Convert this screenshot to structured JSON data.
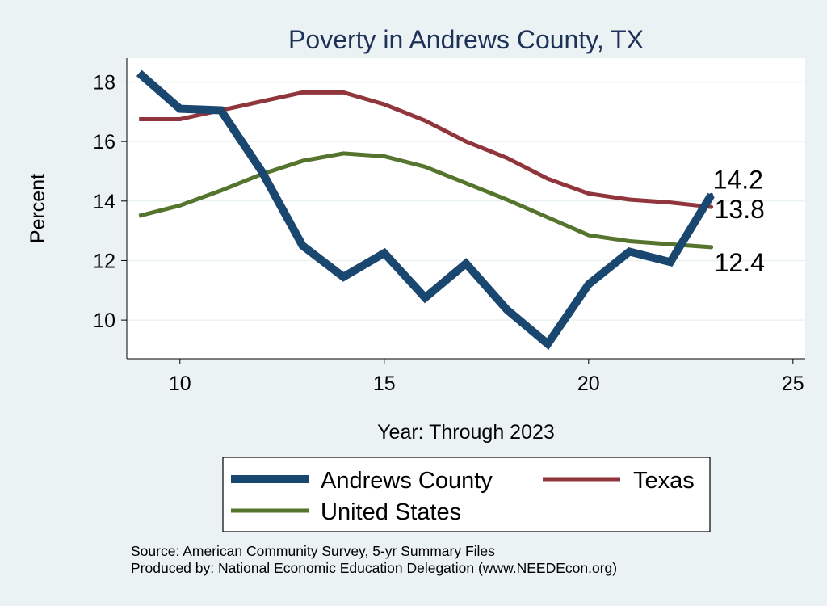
{
  "chart_data": {
    "type": "line",
    "title": "Poverty in Andrews County, TX",
    "xlabel": "Year: Through 2023",
    "ylabel": "Percent",
    "xlim": [
      8.7,
      25.3
    ],
    "ylim": [
      8.7,
      18.8
    ],
    "xticks": [
      10,
      15,
      20,
      25
    ],
    "yticks": [
      10,
      12,
      14,
      16,
      18
    ],
    "grid": true,
    "legend_position": "bottom",
    "x": [
      9,
      10,
      11,
      12,
      13,
      14,
      15,
      16,
      17,
      18,
      19,
      20,
      21,
      22,
      23
    ],
    "series": [
      {
        "name": "Andrews County",
        "color": "#1a476f",
        "values": [
          18.3,
          17.1,
          17.05,
          15.0,
          12.5,
          11.45,
          12.25,
          10.75,
          11.9,
          10.35,
          9.2,
          11.2,
          12.3,
          11.95,
          14.2
        ],
        "end_label": "14.2"
      },
      {
        "name": "Texas",
        "color": "#90353b",
        "values": [
          16.75,
          16.75,
          17.05,
          17.35,
          17.65,
          17.65,
          17.25,
          16.7,
          16.0,
          15.45,
          14.75,
          14.25,
          14.05,
          13.95,
          13.8
        ],
        "end_label": "13.8"
      },
      {
        "name": "United States",
        "color": "#55752f",
        "values": [
          13.5,
          13.85,
          14.35,
          14.9,
          15.35,
          15.6,
          15.5,
          15.15,
          14.6,
          14.05,
          13.45,
          12.85,
          12.65,
          12.55,
          12.45
        ],
        "end_label": "12.4"
      }
    ],
    "notes": [
      "Source: American Community Survey, 5-yr Summary Files",
      "Produced by: National Economic Education Delegation (www.NEEDEcon.org)"
    ]
  }
}
